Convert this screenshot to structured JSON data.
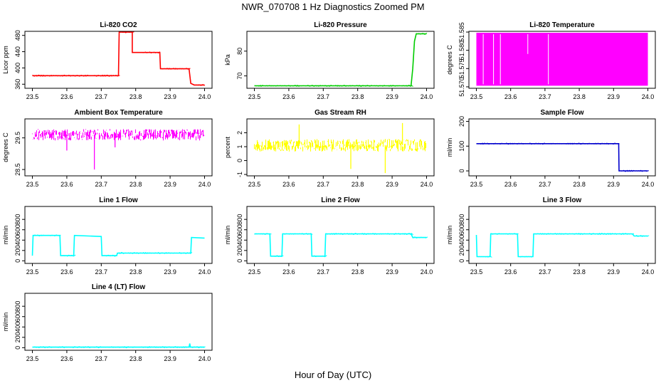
{
  "figure": {
    "title": "NWR_070708  1 Hz Diagnostics Zoomed PM",
    "xlabel": "Hour of Day (UTC)"
  },
  "chart_data": [
    {
      "type": "line",
      "title": "Li-820 CO2",
      "ylabel": "Licor ppm",
      "color": "#ff0000",
      "xlim": [
        23.5,
        24.0
      ],
      "xticks": [
        23.5,
        23.6,
        23.7,
        23.8,
        23.9,
        24.0
      ],
      "ylim": [
        350,
        490
      ],
      "yticks": [
        360,
        400,
        440,
        480
      ],
      "points": [
        [
          23.5,
          381
        ],
        [
          23.75,
          381
        ],
        [
          23.752,
          488
        ],
        [
          23.79,
          488
        ],
        [
          23.79,
          438
        ],
        [
          23.87,
          438
        ],
        [
          23.872,
          398
        ],
        [
          23.955,
          398
        ],
        [
          23.96,
          362
        ],
        [
          23.97,
          358
        ],
        [
          24.0,
          358
        ]
      ]
    },
    {
      "type": "line",
      "title": "Li-820 Pressure",
      "ylabel": "kPa",
      "color": "#00cc00",
      "xlim": [
        23.5,
        24.0
      ],
      "xticks": [
        23.5,
        23.6,
        23.7,
        23.8,
        23.9,
        24.0
      ],
      "ylim": [
        65,
        88
      ],
      "yticks": [
        70,
        80
      ],
      "points": [
        [
          23.5,
          66
        ],
        [
          23.93,
          66
        ],
        [
          23.955,
          66
        ],
        [
          23.96,
          73
        ],
        [
          23.965,
          84
        ],
        [
          23.97,
          87
        ],
        [
          24.0,
          87
        ]
      ]
    },
    {
      "type": "area",
      "title": "Li-820 Temperature",
      "ylabel": "degrees C",
      "color": "#ff00ff",
      "xlim": [
        23.5,
        24.0
      ],
      "xticks": [
        23.5,
        23.6,
        23.7,
        23.8,
        23.9,
        24.0
      ],
      "ylim": [
        51.5696,
        51.5852
      ],
      "yticks": [
        51.57,
        51.575,
        51.58,
        51.585
      ],
      "ytick_labels": [
        "51.570",
        "51.575",
        "51.580",
        "51.585"
      ],
      "band": [
        51.5703,
        51.5848
      ],
      "gaps_x": [
        23.52,
        23.55,
        23.57,
        23.65,
        23.71
      ]
    },
    {
      "type": "line",
      "title": "Ambient Box Temperature",
      "ylabel": "degrees C",
      "color": "#ff00ff",
      "xlim": [
        23.5,
        24.0
      ],
      "xticks": [
        23.5,
        23.6,
        23.7,
        23.8,
        23.9,
        24.0
      ],
      "ylim": [
        28.3,
        30.1
      ],
      "yticks": [
        28.5,
        29.5
      ],
      "noise": {
        "center": 29.6,
        "amp": 0.18,
        "spikes": [
          [
            23.68,
            28.5
          ],
          [
            23.6,
            29.1
          ],
          [
            23.74,
            29.2
          ]
        ]
      }
    },
    {
      "type": "line",
      "title": "Gas Stream RH",
      "ylabel": "percent",
      "color": "#ffff00",
      "xlim": [
        23.5,
        24.0
      ],
      "xticks": [
        23.5,
        23.6,
        23.7,
        23.8,
        23.9,
        24.0
      ],
      "ylim": [
        -1.1,
        3.0
      ],
      "yticks": [
        -1,
        0,
        1,
        2
      ],
      "noise": {
        "center": 1.1,
        "amp": 0.45,
        "spikes": [
          [
            23.88,
            -0.9
          ],
          [
            23.78,
            -0.6
          ],
          [
            23.63,
            2.6
          ],
          [
            23.93,
            2.7
          ]
        ]
      }
    },
    {
      "type": "line",
      "title": "Sample Flow",
      "ylabel": "ml/min",
      "color": "#0000cd",
      "xlim": [
        23.5,
        24.0
      ],
      "xticks": [
        23.5,
        23.6,
        23.7,
        23.8,
        23.9,
        24.0
      ],
      "ylim": [
        -20,
        210
      ],
      "yticks": [
        0,
        100,
        200
      ],
      "points": [
        [
          23.5,
          110
        ],
        [
          23.915,
          110
        ],
        [
          23.916,
          0
        ],
        [
          24.0,
          0
        ]
      ]
    },
    {
      "type": "line",
      "title": "Line 1 Flow",
      "ylabel": "ml/min",
      "color": "#00ffff",
      "xlim": [
        23.5,
        24.0
      ],
      "xticks": [
        23.5,
        23.6,
        23.7,
        23.8,
        23.9,
        24.0
      ],
      "ylim": [
        -50,
        1050
      ],
      "yticks": [
        0,
        200,
        400,
        600,
        800
      ],
      "points": [
        [
          23.5,
          100
        ],
        [
          23.502,
          490
        ],
        [
          23.58,
          490
        ],
        [
          23.582,
          100
        ],
        [
          23.62,
          100
        ],
        [
          23.622,
          490
        ],
        [
          23.7,
          470
        ],
        [
          23.702,
          100
        ],
        [
          23.745,
          100
        ],
        [
          23.747,
          150
        ],
        [
          23.96,
          150
        ],
        [
          23.962,
          450
        ],
        [
          24.0,
          440
        ]
      ]
    },
    {
      "type": "line",
      "title": "Line 2 Flow",
      "ylabel": "ml/min",
      "color": "#00ffff",
      "xlim": [
        23.5,
        24.0
      ],
      "xticks": [
        23.5,
        23.6,
        23.7,
        23.8,
        23.9,
        24.0
      ],
      "ylim": [
        -50,
        1050
      ],
      "yticks": [
        0,
        200,
        400,
        600,
        800
      ],
      "points": [
        [
          23.5,
          520
        ],
        [
          23.545,
          520
        ],
        [
          23.547,
          90
        ],
        [
          23.58,
          90
        ],
        [
          23.582,
          520
        ],
        [
          23.665,
          520
        ],
        [
          23.667,
          90
        ],
        [
          23.705,
          90
        ],
        [
          23.707,
          520
        ],
        [
          23.955,
          520
        ],
        [
          23.96,
          450
        ],
        [
          24.0,
          450
        ]
      ]
    },
    {
      "type": "line",
      "title": "Line 3 Flow",
      "ylabel": "ml/min",
      "color": "#00ffff",
      "xlim": [
        23.5,
        24.0
      ],
      "xticks": [
        23.5,
        23.6,
        23.7,
        23.8,
        23.9,
        24.0
      ],
      "ylim": [
        -50,
        1050
      ],
      "yticks": [
        0,
        200,
        400,
        600,
        800
      ],
      "points": [
        [
          23.5,
          500
        ],
        [
          23.502,
          80
        ],
        [
          23.54,
          80
        ],
        [
          23.542,
          520
        ],
        [
          23.62,
          520
        ],
        [
          23.622,
          80
        ],
        [
          23.665,
          80
        ],
        [
          23.667,
          520
        ],
        [
          23.955,
          520
        ],
        [
          23.96,
          480
        ],
        [
          24.0,
          480
        ]
      ]
    },
    {
      "type": "line",
      "title": "Line 4 (LT) Flow",
      "ylabel": "ml/min",
      "color": "#00ffff",
      "xlim": [
        23.5,
        24.0
      ],
      "xticks": [
        23.5,
        23.6,
        23.7,
        23.8,
        23.9,
        24.0
      ],
      "ylim": [
        -50,
        1050
      ],
      "yticks": [
        0,
        200,
        400,
        600,
        800
      ],
      "points": [
        [
          23.5,
          10
        ],
        [
          23.955,
          10
        ],
        [
          23.957,
          80
        ],
        [
          23.959,
          10
        ],
        [
          24.0,
          10
        ]
      ]
    }
  ]
}
